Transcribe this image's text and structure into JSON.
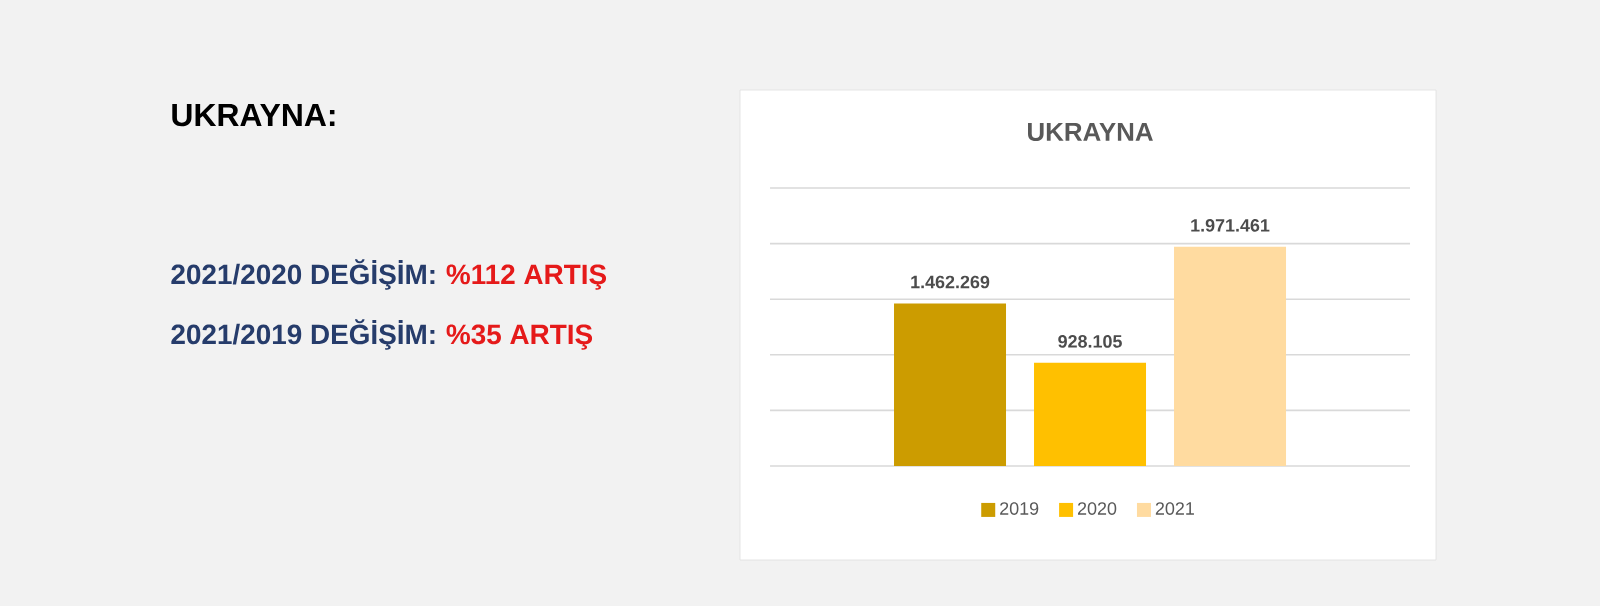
{
  "chart_data": {
    "type": "bar",
    "title": "UKRAYNA",
    "categories": [
      null
    ],
    "series": [
      {
        "name": "2019",
        "color": "#cc9c00",
        "values": [
          1462269
        ],
        "value_labels": [
          "1.462.269"
        ]
      },
      {
        "name": "2020",
        "color": "#ffc000",
        "values": [
          928105
        ],
        "value_labels": [
          "928.105"
        ]
      },
      {
        "name": "2021",
        "color": "#ffdba0",
        "values": [
          1971461
        ],
        "value_labels": [
          "1.971.461"
        ]
      }
    ],
    "ylim": [
      0,
      2500000
    ],
    "yticks": [
      {
        "value": 0,
        "label": null
      },
      {
        "value": 500000,
        "label": null
      },
      {
        "value": 1000000,
        "label": null
      },
      {
        "value": 1500000,
        "label": null
      },
      {
        "value": 2000000,
        "label": null
      },
      {
        "value": 2500000,
        "label": null
      }
    ],
    "grid": "y",
    "legend": "bottom",
    "annotations": [
      "UKRAYNA:",
      "2021/2020 DEĞİŞİM:",
      "%112 ARTIŞ",
      "2021/2019 DEĞİŞİM:",
      "%35 ARTIŞ"
    ]
  }
}
